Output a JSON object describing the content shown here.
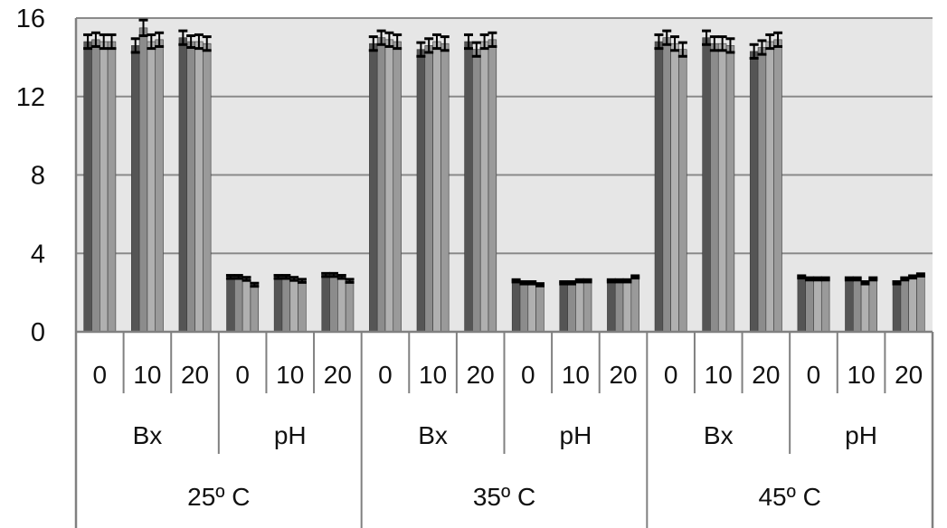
{
  "chart_data": {
    "type": "bar",
    "title": "",
    "xlabel": "",
    "ylabel": "",
    "ylim": [
      0,
      16
    ],
    "y_ticks": [
      "0",
      "4",
      "8",
      "12",
      "16"
    ],
    "grid": "horizontal",
    "legend": "none",
    "error_bars": true,
    "colors": {
      "plot_background": "#e6e6e6",
      "gridline": "#8a8a8a",
      "axis": "#808080",
      "series": [
        "#555555",
        "#8c8c8c",
        "#b0b0b0",
        "#9a9a9a"
      ]
    },
    "x_levels": {
      "level1": [
        "0",
        "10",
        "20",
        "0",
        "10",
        "20",
        "0",
        "10",
        "20",
        "0",
        "10",
        "20",
        "0",
        "10",
        "20",
        "0",
        "10",
        "20"
      ],
      "level2": [
        "Bx",
        "pH",
        "Bx",
        "pH",
        "Bx",
        "pH"
      ],
      "level3": [
        "25º C",
        "35º C",
        "45º C"
      ]
    },
    "groups": [
      {
        "values": [
          14.8,
          14.9,
          14.8,
          14.8
        ],
        "errors": [
          0.35,
          0.35,
          0.35,
          0.35
        ]
      },
      {
        "values": [
          14.6,
          15.5,
          14.8,
          14.9
        ],
        "errors": [
          0.35,
          0.4,
          0.35,
          0.35
        ]
      },
      {
        "values": [
          15.0,
          14.8,
          14.8,
          14.7
        ],
        "errors": [
          0.35,
          0.3,
          0.35,
          0.35
        ]
      },
      {
        "values": [
          2.8,
          2.8,
          2.7,
          2.4
        ],
        "errors": [
          0.08,
          0.08,
          0.08,
          0.08
        ]
      },
      {
        "values": [
          2.8,
          2.8,
          2.7,
          2.6
        ],
        "errors": [
          0.08,
          0.08,
          0.08,
          0.08
        ]
      },
      {
        "values": [
          2.9,
          2.9,
          2.8,
          2.6
        ],
        "errors": [
          0.08,
          0.08,
          0.08,
          0.08
        ]
      },
      {
        "values": [
          14.7,
          15.0,
          14.9,
          14.8
        ],
        "errors": [
          0.35,
          0.35,
          0.35,
          0.35
        ]
      },
      {
        "values": [
          14.4,
          14.6,
          14.8,
          14.7
        ],
        "errors": [
          0.35,
          0.35,
          0.35,
          0.35
        ]
      },
      {
        "values": [
          14.8,
          14.4,
          14.8,
          14.9
        ],
        "errors": [
          0.35,
          0.35,
          0.35,
          0.35
        ]
      },
      {
        "values": [
          2.6,
          2.5,
          2.5,
          2.4
        ],
        "errors": [
          0.06,
          0.06,
          0.06,
          0.06
        ]
      },
      {
        "values": [
          2.5,
          2.5,
          2.6,
          2.6
        ],
        "errors": [
          0.06,
          0.06,
          0.06,
          0.06
        ]
      },
      {
        "values": [
          2.6,
          2.6,
          2.6,
          2.8
        ],
        "errors": [
          0.06,
          0.06,
          0.06,
          0.06
        ]
      },
      {
        "values": [
          14.8,
          15.0,
          14.7,
          14.4
        ],
        "errors": [
          0.35,
          0.35,
          0.35,
          0.35
        ]
      },
      {
        "values": [
          15.0,
          14.7,
          14.7,
          14.6
        ],
        "errors": [
          0.35,
          0.35,
          0.35,
          0.35
        ]
      },
      {
        "values": [
          14.3,
          14.5,
          14.8,
          14.9
        ],
        "errors": [
          0.35,
          0.35,
          0.35,
          0.35
        ]
      },
      {
        "values": [
          2.8,
          2.7,
          2.7,
          2.7
        ],
        "errors": [
          0.06,
          0.06,
          0.06,
          0.06
        ]
      },
      {
        "values": [
          2.7,
          2.7,
          2.5,
          2.7
        ],
        "errors": [
          0.06,
          0.06,
          0.06,
          0.06
        ]
      },
      {
        "values": [
          2.5,
          2.7,
          2.8,
          2.9
        ],
        "errors": [
          0.06,
          0.06,
          0.06,
          0.06
        ]
      }
    ]
  }
}
